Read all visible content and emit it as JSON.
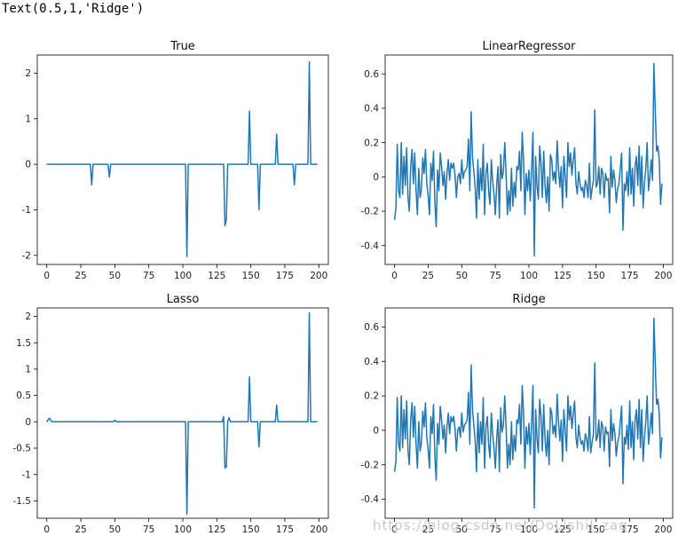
{
  "output_text": "Text(0.5,1,'Ridge')",
  "watermark": "https://blog.csdn.net/DoLishiI_zaq",
  "colors": {
    "line": "#1f77b4",
    "axes": "#000000"
  },
  "chart_data": [
    {
      "type": "line",
      "title": "True",
      "xlim": [
        -7,
        207
      ],
      "ylim": [
        -2.2,
        2.4
      ],
      "xticks": [
        0,
        25,
        50,
        75,
        100,
        125,
        150,
        175,
        200
      ],
      "yticks": [
        -2,
        -1,
        0,
        1,
        2
      ],
      "x_range": [
        0,
        199
      ],
      "baseline": 0,
      "points": [
        [
          33,
          -0.45
        ],
        [
          46,
          -0.28
        ],
        [
          103,
          -2.03
        ],
        [
          131,
          -1.35
        ],
        [
          132,
          -1.22
        ],
        [
          149,
          1.17
        ],
        [
          156,
          -1.0
        ],
        [
          169,
          0.66
        ],
        [
          182,
          -0.45
        ],
        [
          193,
          2.25
        ]
      ]
    },
    {
      "type": "line",
      "title": "LinearRegressor",
      "xlim": [
        -7,
        207
      ],
      "ylim": [
        -0.51,
        0.71
      ],
      "xticks": [
        0,
        25,
        50,
        75,
        100,
        125,
        150,
        175,
        200
      ],
      "yticks": [
        -0.4,
        -0.2,
        0.0,
        0.2,
        0.4,
        0.6
      ],
      "x_range": [
        0,
        199
      ],
      "values": [
        -0.25,
        -0.18,
        0.19,
        -0.08,
        -0.12,
        0.2,
        -0.1,
        0.12,
        -0.05,
        0.17,
        -0.12,
        -0.2,
        0.06,
        0.16,
        -0.04,
        0.14,
        -0.08,
        -0.22,
        0.05,
        -0.12,
        -0.07,
        0.11,
        0.02,
        0.16,
        -0.04,
        -0.11,
        -0.22,
        0.08,
        -0.02,
        0.15,
        -0.15,
        -0.29,
        0.04,
        -0.08,
        0.14,
        0.06,
        -0.05,
        0.03,
        -0.13,
        0.02,
        0.1,
        -0.02,
        0.08,
        0.05,
        0.08,
        0.01,
        -0.12,
        0.0,
        0.02,
        -0.04,
        0.1,
        -0.01,
        0.03,
        0.04,
        0.06,
        0.22,
        -0.08,
        0.38,
        0.12,
        0.03,
        -0.06,
        -0.24,
        0.1,
        -0.13,
        0.05,
        -0.08,
        0.19,
        -0.22,
        0.02,
        0.08,
        -0.08,
        -0.16,
        0.1,
        -0.02,
        -0.1,
        -0.22,
        -0.05,
        0.06,
        -0.24,
        0.13,
        -0.01,
        0.03,
        0.2,
        0.02,
        -0.22,
        -0.08,
        -0.2,
        0.05,
        -0.17,
        -0.03,
        -0.12,
        0.06,
        0.04,
        0.15,
        -0.08,
        0.26,
        0.1,
        -0.22,
        0.02,
        -0.08,
        0.04,
        -0.14,
        0.04,
        0.26,
        -0.46,
        0.12,
        -0.05,
        -0.13,
        0.18,
        0.08,
        -0.12,
        0.15,
        -0.05,
        -0.15,
        0.0,
        -0.2,
        0.13,
        0.1,
        -0.02,
        0.03,
        -0.04,
        0.21,
        0.05,
        -0.06,
        0.06,
        -0.18,
        0.12,
        0.0,
        -0.12,
        0.2,
        0.06,
        0.14,
        0.01,
        0.1,
        0.17,
        -0.04,
        -0.1,
        0.03,
        -0.04,
        -0.08,
        -0.06,
        -0.12,
        -0.02,
        -0.05,
        -0.12,
        0.08,
        -0.13,
        -0.07,
        -0.02,
        0.39,
        -0.06,
        -0.04,
        0.06,
        -0.1,
        0.05,
        0.02,
        -0.12,
        0.02,
        -0.02,
        -0.01,
        -0.21,
        0.12,
        -0.06,
        0.04,
        -0.02,
        -0.15,
        -0.07,
        -0.04,
        0.05,
        0.14,
        -0.31,
        -0.04,
        -0.08,
        0.03,
        -0.11,
        0.17,
        -0.1,
        0.05,
        -0.17,
        0.06,
        0.12,
        -0.05,
        0.18,
        -0.1,
        0.12,
        -0.18,
        -0.04,
        0.05,
        0.2,
        -0.08,
        0.0,
        0.1,
        -0.02,
        0.66,
        0.4,
        0.15,
        0.18,
        0.1,
        -0.16,
        -0.04
      ]
    },
    {
      "type": "line",
      "title": "Lasso",
      "xlim": [
        -7,
        207
      ],
      "ylim": [
        -1.83,
        2.16
      ],
      "xticks": [
        0,
        25,
        50,
        75,
        100,
        125,
        150,
        175,
        200
      ],
      "yticks": [
        -1.5,
        -1.0,
        -0.5,
        0.0,
        0.5,
        1.0,
        1.5,
        2.0
      ],
      "x_range": [
        0,
        199
      ],
      "baseline": 0,
      "points": [
        [
          1,
          0.04
        ],
        [
          2,
          0.07
        ],
        [
          3,
          0.02
        ],
        [
          50,
          0.03
        ],
        [
          103,
          -1.75
        ],
        [
          130,
          0.1
        ],
        [
          131,
          -0.88
        ],
        [
          132,
          -0.85
        ],
        [
          134,
          0.08
        ],
        [
          149,
          0.85
        ],
        [
          156,
          -0.48
        ],
        [
          169,
          0.32
        ],
        [
          193,
          2.07
        ]
      ]
    },
    {
      "type": "line",
      "title": "Ridge",
      "xlim": [
        -7,
        207
      ],
      "ylim": [
        -0.51,
        0.71
      ],
      "xticks": [
        0,
        25,
        50,
        75,
        100,
        125,
        150,
        175,
        200
      ],
      "yticks": [
        -0.4,
        -0.2,
        0.0,
        0.2,
        0.4,
        0.6
      ],
      "x_range": [
        0,
        199
      ],
      "values": [
        -0.24,
        -0.18,
        0.19,
        -0.08,
        -0.12,
        0.2,
        -0.1,
        0.12,
        -0.05,
        0.17,
        -0.12,
        -0.2,
        0.06,
        0.16,
        -0.04,
        0.14,
        -0.08,
        -0.22,
        0.05,
        -0.12,
        -0.07,
        0.11,
        0.02,
        0.16,
        -0.04,
        -0.11,
        -0.22,
        0.08,
        -0.02,
        0.15,
        -0.15,
        -0.29,
        0.04,
        -0.08,
        0.14,
        0.06,
        -0.05,
        0.03,
        -0.13,
        0.02,
        0.1,
        -0.02,
        0.08,
        0.05,
        0.08,
        0.01,
        -0.12,
        0.0,
        0.02,
        -0.04,
        0.1,
        -0.01,
        0.03,
        0.04,
        0.06,
        0.22,
        -0.08,
        0.38,
        0.12,
        0.03,
        -0.06,
        -0.24,
        0.1,
        -0.13,
        0.05,
        -0.08,
        0.19,
        -0.22,
        0.02,
        0.08,
        -0.08,
        -0.16,
        0.1,
        -0.02,
        -0.1,
        -0.22,
        -0.05,
        0.06,
        -0.24,
        0.13,
        -0.01,
        0.03,
        0.2,
        0.02,
        -0.22,
        -0.08,
        -0.2,
        0.05,
        -0.17,
        -0.03,
        -0.12,
        0.06,
        0.04,
        0.15,
        -0.08,
        0.26,
        0.1,
        -0.22,
        0.02,
        -0.08,
        0.04,
        -0.14,
        0.04,
        0.26,
        -0.45,
        0.12,
        -0.05,
        -0.13,
        0.18,
        0.08,
        -0.12,
        0.15,
        -0.05,
        -0.15,
        0.0,
        -0.2,
        0.13,
        0.1,
        -0.02,
        0.03,
        -0.04,
        0.21,
        0.05,
        -0.06,
        0.06,
        -0.18,
        0.12,
        0.0,
        -0.12,
        0.2,
        0.06,
        0.14,
        0.01,
        0.1,
        0.17,
        -0.04,
        -0.1,
        0.03,
        -0.04,
        -0.08,
        -0.06,
        -0.12,
        -0.02,
        -0.05,
        -0.12,
        0.08,
        -0.13,
        -0.07,
        -0.02,
        0.39,
        -0.06,
        -0.04,
        0.06,
        -0.1,
        0.05,
        0.02,
        -0.12,
        0.02,
        -0.02,
        -0.01,
        -0.21,
        0.12,
        -0.06,
        0.04,
        -0.02,
        -0.15,
        -0.07,
        -0.04,
        0.05,
        0.14,
        -0.31,
        -0.04,
        -0.08,
        0.03,
        -0.11,
        0.17,
        -0.1,
        0.05,
        -0.17,
        0.06,
        0.12,
        -0.05,
        0.18,
        -0.1,
        0.12,
        -0.18,
        -0.04,
        0.05,
        0.2,
        -0.08,
        0.0,
        0.1,
        -0.02,
        0.65,
        0.4,
        0.15,
        0.18,
        0.1,
        -0.16,
        -0.04
      ]
    }
  ]
}
